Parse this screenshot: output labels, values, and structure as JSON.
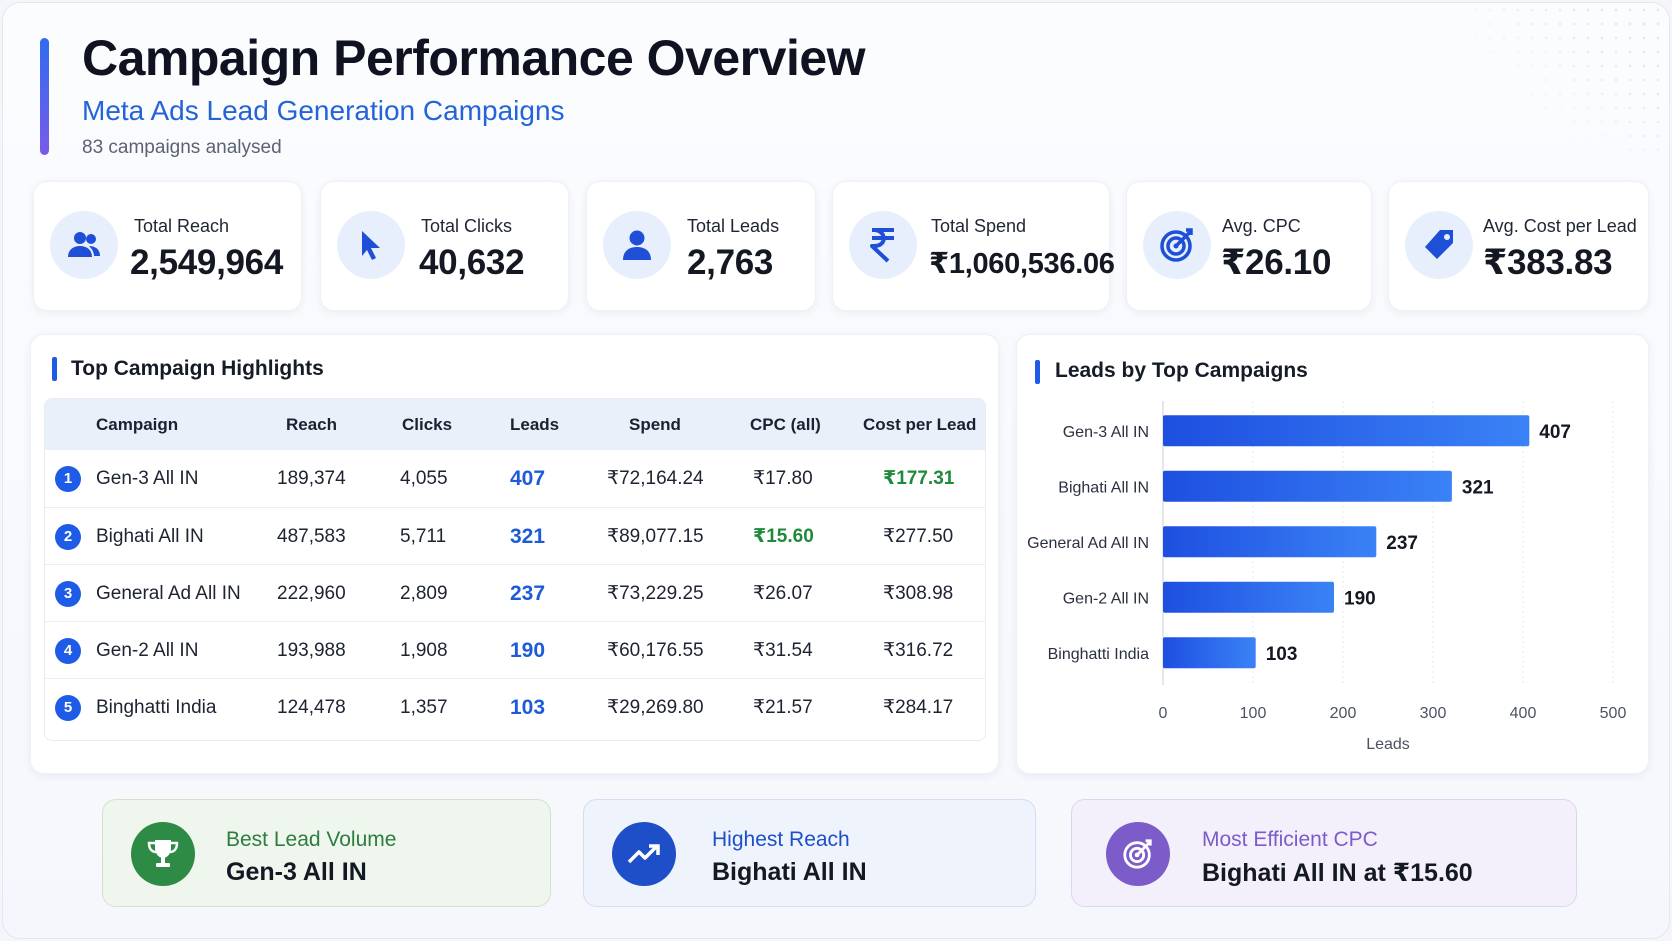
{
  "header": {
    "title": "Campaign Performance Overview",
    "subtitle": "Meta Ads Lead Generation Campaigns",
    "note": "83 campaigns analysed"
  },
  "kpis": [
    {
      "label": "Total Reach",
      "value": "2,549,964",
      "icon": "users-icon"
    },
    {
      "label": "Total Clicks",
      "value": "40,632",
      "icon": "cursor-icon"
    },
    {
      "label": "Total Leads",
      "value": "2,763",
      "icon": "user-icon"
    },
    {
      "label": "Total Spend",
      "value": "₹1,060,536.06",
      "icon": "rupee-icon"
    },
    {
      "label": "Avg. CPC",
      "value": "₹26.10",
      "icon": "target-icon"
    },
    {
      "label": "Avg. Cost per Lead",
      "value": "₹383.83",
      "icon": "tag-icon"
    }
  ],
  "highlights": {
    "title": "Top Campaign Highlights",
    "columns": [
      "Campaign",
      "Reach",
      "Clicks",
      "Leads",
      "Spend",
      "CPC (all)",
      "Cost per Lead"
    ],
    "rows": [
      {
        "rank": "1",
        "campaign": "Gen-3 All IN",
        "reach": "189,374",
        "clicks": "4,055",
        "leads": "407",
        "spend": "₹72,164.24",
        "cpc": "₹17.80",
        "cpl": "₹177.31"
      },
      {
        "rank": "2",
        "campaign": "Bighati All IN",
        "reach": "487,583",
        "clicks": "5,711",
        "leads": "321",
        "spend": "₹89,077.15",
        "cpc": "₹15.60",
        "cpl": "₹277.50"
      },
      {
        "rank": "3",
        "campaign": "General Ad All IN",
        "reach": "222,960",
        "clicks": "2,809",
        "leads": "237",
        "spend": "₹73,229.25",
        "cpc": "₹26.07",
        "cpl": "₹308.98"
      },
      {
        "rank": "4",
        "campaign": "Gen-2 All IN",
        "reach": "193,988",
        "clicks": "1,908",
        "leads": "190",
        "spend": "₹60,176.55",
        "cpc": "₹31.54",
        "cpl": "₹316.72"
      },
      {
        "rank": "5",
        "campaign": "Binghatti India",
        "reach": "124,478",
        "clicks": "1,357",
        "leads": "103",
        "spend": "₹29,269.80",
        "cpc": "₹21.57",
        "cpl": "₹284.17"
      }
    ],
    "highlight_color": "#1f8a3b"
  },
  "leads_chart": {
    "title": "Leads by Top Campaigns"
  },
  "chart_data": {
    "type": "bar",
    "orientation": "horizontal",
    "categories": [
      "Gen-3 All IN",
      "Bighati All IN",
      "General Ad All IN",
      "Gen-2 All IN",
      "Binghatti India"
    ],
    "values": [
      407,
      321,
      237,
      190,
      103
    ],
    "xlabel": "Leads",
    "ylabel": "",
    "xlim": [
      0,
      500
    ],
    "xticks": [
      "0",
      "100",
      "200",
      "300",
      "400",
      "500"
    ],
    "grid": true,
    "bar_color": "#2563eb"
  },
  "insights": [
    {
      "label": "Best Lead Volume",
      "value": "Gen-3 All IN",
      "icon": "trophy-icon",
      "color": "#2e8b45"
    },
    {
      "label": "Highest Reach",
      "value": "Bighati All IN",
      "icon": "trending-up-icon",
      "color": "#1e4fc8"
    },
    {
      "label": "Most Efficient CPC",
      "value": "Bighati All IN at ₹15.60",
      "icon": "target-icon",
      "color": "#7b5cc9"
    }
  ]
}
